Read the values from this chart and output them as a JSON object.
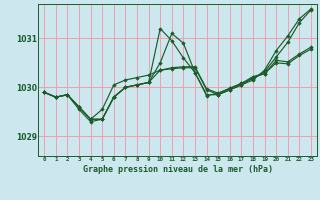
{
  "background_color": "#cce8ee",
  "grid_color": "#f0a0b0",
  "line_color": "#1a5c2a",
  "marker_color": "#1a5c2a",
  "xlabel": "Graphe pression niveau de la mer (hPa)",
  "yticks": [
    1029,
    1030,
    1031
  ],
  "xticks": [
    0,
    1,
    2,
    3,
    4,
    5,
    6,
    7,
    8,
    9,
    10,
    11,
    12,
    13,
    14,
    15,
    16,
    17,
    18,
    19,
    20,
    21,
    22,
    23
  ],
  "xlim": [
    -0.5,
    23.5
  ],
  "ylim": [
    1028.6,
    1031.7
  ],
  "series": [
    [
      1029.9,
      1029.8,
      1029.85,
      1029.55,
      1029.3,
      1029.35,
      1029.8,
      1030.0,
      1030.05,
      1030.1,
      1031.2,
      1030.95,
      1030.6,
      1030.3,
      1029.85,
      1029.85,
      1029.95,
      1030.05,
      1030.15,
      1030.35,
      1030.75,
      1031.05,
      1031.4,
      1031.6
    ],
    [
      1029.9,
      1029.8,
      1029.85,
      1029.6,
      1029.35,
      1029.55,
      1030.05,
      1030.15,
      1030.2,
      1030.25,
      1030.35,
      1030.4,
      1030.42,
      1030.42,
      1029.97,
      1029.88,
      1029.98,
      1030.08,
      1030.22,
      1030.28,
      1030.55,
      1030.52,
      1030.68,
      1030.82
    ],
    [
      1029.9,
      1029.8,
      1029.85,
      1029.6,
      1029.35,
      1029.35,
      1029.8,
      1030.0,
      1030.05,
      1030.1,
      1030.5,
      1031.1,
      1030.9,
      1030.3,
      1029.83,
      1029.88,
      1029.98,
      1030.08,
      1030.18,
      1030.32,
      1030.62,
      1030.92,
      1031.32,
      1031.58
    ],
    [
      1029.9,
      1029.8,
      1029.85,
      1029.6,
      1029.35,
      1029.35,
      1029.8,
      1030.0,
      1030.05,
      1030.1,
      1030.35,
      1030.38,
      1030.4,
      1030.4,
      1029.95,
      1029.85,
      1029.95,
      1030.05,
      1030.2,
      1030.28,
      1030.5,
      1030.48,
      1030.65,
      1030.78
    ]
  ]
}
